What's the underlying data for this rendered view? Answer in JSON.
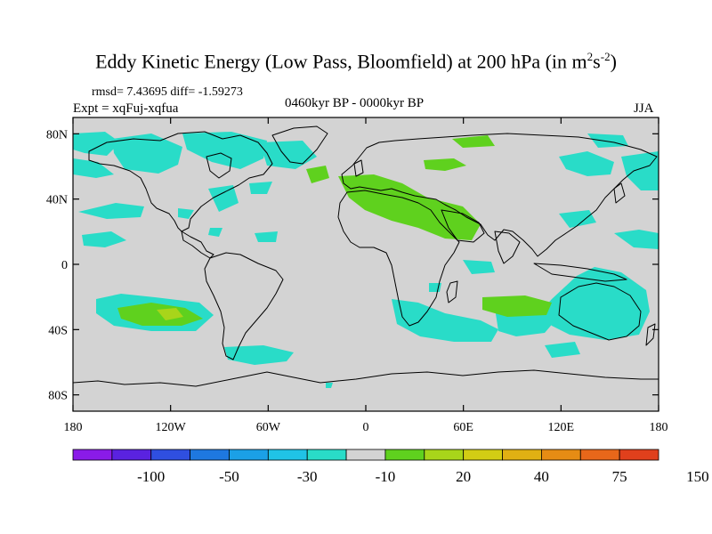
{
  "title": {
    "main": "Eddy Kinetic Energy (Low Pass, Bloomfield) at 200 hPa (in m",
    "sup1": "2",
    "mid": "s",
    "sup2": "-2",
    "end": ")"
  },
  "stats": "rmsd= 7.43695 diff= -1.59273",
  "expt": "Expt = xqFuj-xqfua",
  "period": "0460kyr BP - 0000kyr BP",
  "season": "JJA",
  "map": {
    "lon_range": [
      -180,
      180
    ],
    "lat_range": [
      -90,
      90
    ],
    "lat_tick_values": [
      80,
      40,
      0,
      -40,
      -80
    ],
    "lat_tick_labels": [
      "80N",
      "40N",
      "0",
      "40S",
      "80S"
    ],
    "lon_tick_values": [
      -180,
      -120,
      -60,
      0,
      60,
      120,
      180
    ],
    "lon_tick_labels": [
      "180",
      "120W",
      "60W",
      "0",
      "60E",
      "120E",
      "180"
    ],
    "background_color": "#d3d3d3",
    "coast_color": "#000000"
  },
  "colorbar": {
    "colors": [
      "#8a1be8",
      "#5a22e0",
      "#2f4fe0",
      "#1e78e0",
      "#1ba0e6",
      "#20c3e6",
      "#29dcc8",
      "#d3d3d3",
      "#5fd11e",
      "#a8d51a",
      "#d2cd14",
      "#e0b013",
      "#e68c14",
      "#e8671a",
      "#e0401c"
    ],
    "labels": [
      "-100",
      "-50",
      "-30",
      "-10",
      "20",
      "40",
      "75",
      "150"
    ]
  }
}
